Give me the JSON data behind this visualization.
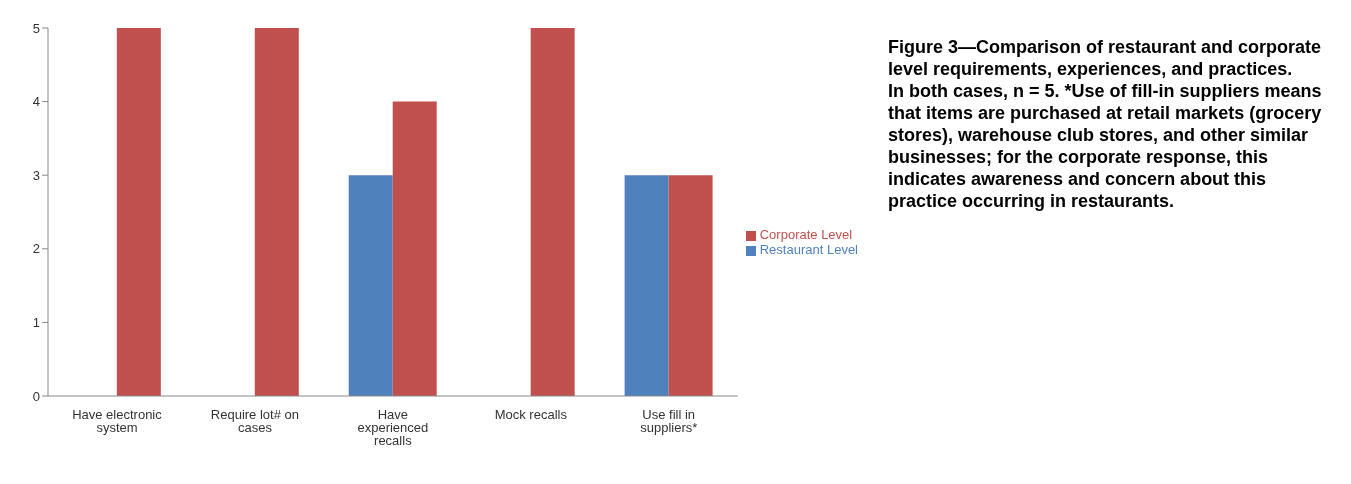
{
  "chart_data": {
    "type": "bar",
    "title": "Figure 3—Comparison of restaurant and corporate level requirements, experiences, and practices.",
    "annotations": [
      "In both cases, n = 5. *Use of fill-in suppliers means that items are purchased at retail markets (grocery stores), warehouse club stores, and other similar businesses; for the corporate response, this indicates awareness and concern about this practice occurring in restaurants."
    ],
    "categories": [
      "Have electronic system",
      "Require lot# on cases",
      "Have experienced recalls",
      "Mock recalls",
      "Use fill in suppliers*"
    ],
    "series": [
      {
        "name": "Restaurant Level",
        "color": "#4f81bd",
        "values": [
          0,
          0,
          3,
          0,
          3
        ]
      },
      {
        "name": "Corporate Level",
        "color": "#c0504d",
        "values": [
          5,
          5,
          4,
          5,
          3
        ]
      }
    ],
    "ylim": [
      0,
      5
    ],
    "yticks": [
      0,
      1,
      2,
      3,
      4,
      5
    ],
    "grid": false,
    "legend": "right"
  }
}
